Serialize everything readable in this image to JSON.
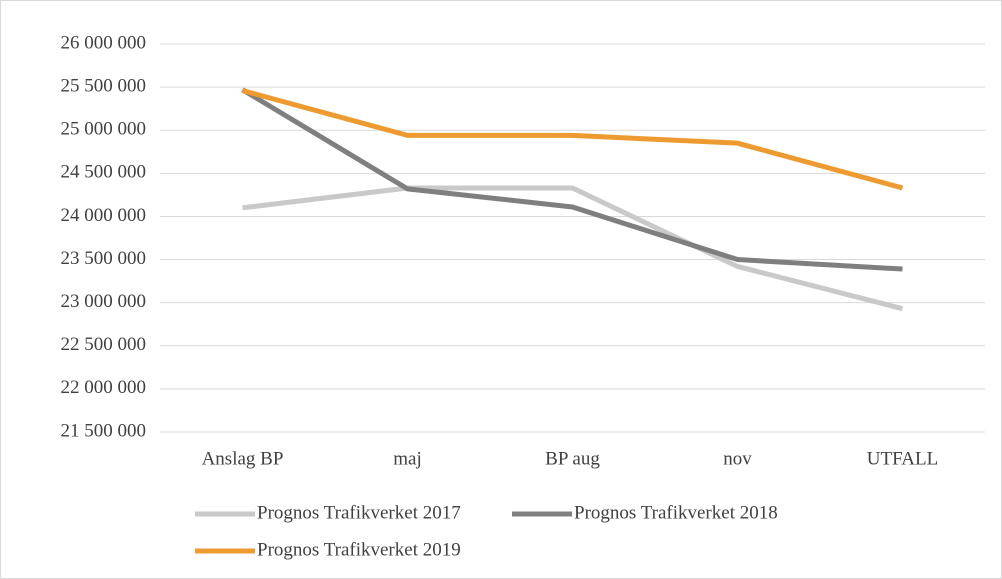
{
  "chart_data": {
    "type": "line",
    "categories": [
      "Anslag BP",
      "maj",
      "BP aug",
      "nov",
      "UTFALL"
    ],
    "series": [
      {
        "name": "Prognos Trafikverket 2017",
        "color": "#c9c9c9",
        "values": [
          24100000,
          24330000,
          24330000,
          23420000,
          22930000
        ]
      },
      {
        "name": "Prognos Trafikverket 2018",
        "color": "#7f7f7f",
        "values": [
          25470000,
          24320000,
          24110000,
          23500000,
          23390000
        ]
      },
      {
        "name": "Prognos Trafikverket 2019",
        "color": "#ed9b30",
        "values": [
          25460000,
          24940000,
          24940000,
          24850000,
          24330000
        ]
      }
    ],
    "ylim": [
      21500000,
      26000000
    ],
    "yticks": [
      {
        "value": 21500000,
        "label": "21 500 000"
      },
      {
        "value": 22000000,
        "label": "22 000 000"
      },
      {
        "value": 22500000,
        "label": "22 500 000"
      },
      {
        "value": 23000000,
        "label": "23 000 000"
      },
      {
        "value": 23500000,
        "label": "23 500 000"
      },
      {
        "value": 24000000,
        "label": "24 000 000"
      },
      {
        "value": 24500000,
        "label": "24 500 000"
      },
      {
        "value": 25000000,
        "label": "25 000 000"
      },
      {
        "value": 25500000,
        "label": "25 500 000"
      },
      {
        "value": 26000000,
        "label": "26 000 000"
      }
    ],
    "grid": true,
    "legend": "bottom"
  }
}
